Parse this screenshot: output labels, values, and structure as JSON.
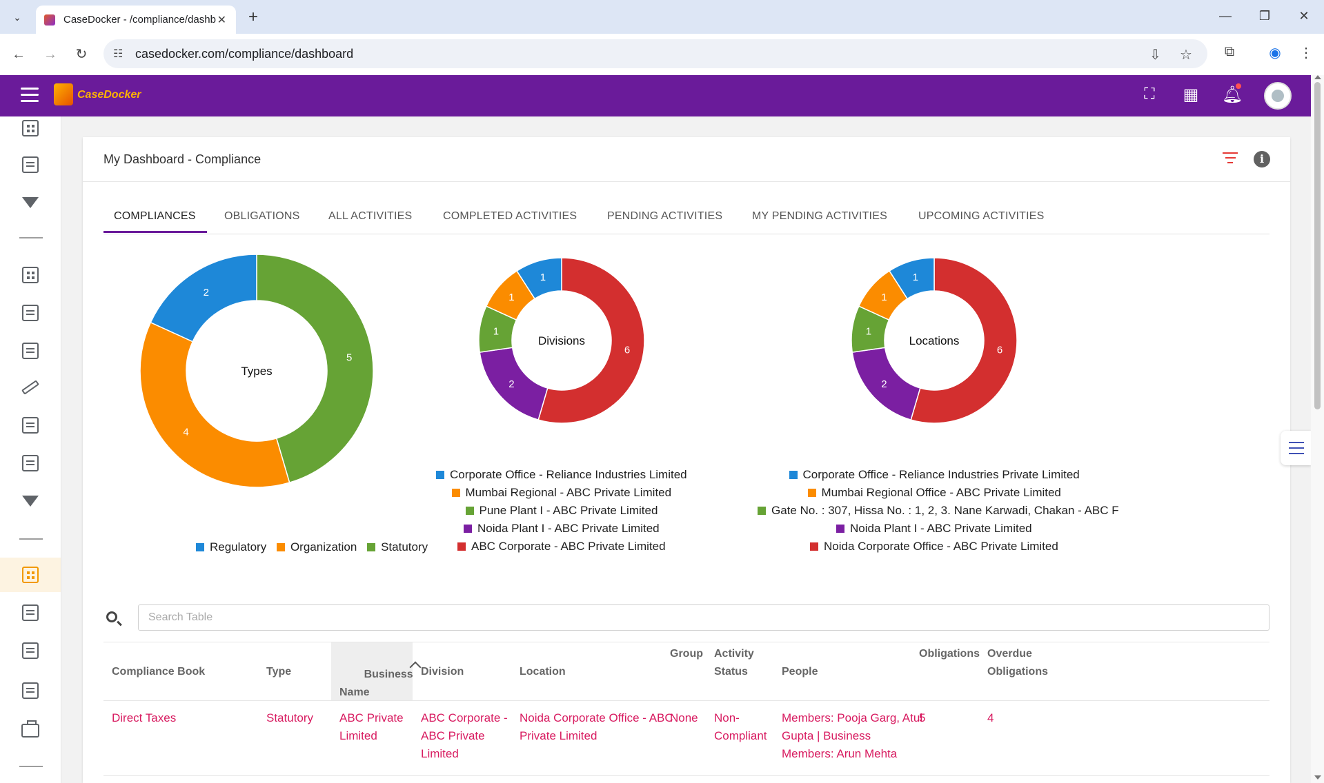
{
  "browser": {
    "tab_title": "CaseDocker - /compliance/dashb",
    "url": "casedocker.com/compliance/dashboard",
    "new_tab": "+",
    "close_tab": "✕",
    "minimize": "—",
    "restore": "❐",
    "close_window": "✕"
  },
  "app": {
    "logo_text": "CaseDocker"
  },
  "page": {
    "title": "My Dashboard - Compliance"
  },
  "tabs": [
    {
      "label": "COMPLIANCES"
    },
    {
      "label": "OBLIGATIONS"
    },
    {
      "label": "ALL ACTIVITIES"
    },
    {
      "label": "COMPLETED ACTIVITIES"
    },
    {
      "label": "PENDING ACTIVITIES"
    },
    {
      "label": "MY PENDING ACTIVITIES"
    },
    {
      "label": "UPCOMING ACTIVITIES"
    }
  ],
  "colors": {
    "blue": "#1e88d8",
    "orange": "#fb8c00",
    "green": "#66a335",
    "purple": "#7b1fa2",
    "red": "#d32f2f"
  },
  "chart_data": [
    {
      "type": "pie",
      "title": "Types",
      "categories": [
        "Regulatory",
        "Organization",
        "Statutory"
      ],
      "values": [
        2,
        4,
        5
      ],
      "colors": [
        "#1e88d8",
        "#fb8c00",
        "#66a335"
      ]
    },
    {
      "type": "pie",
      "title": "Divisions",
      "categories": [
        "Corporate Office - Reliance Industries Limited",
        "Mumbai Regional - ABC Private Limited",
        "Pune Plant I - ABC Private Limited",
        "Noida Plant I - ABC Private Limited",
        "ABC Corporate - ABC Private Limited"
      ],
      "values": [
        1,
        1,
        1,
        2,
        6
      ],
      "colors": [
        "#1e88d8",
        "#fb8c00",
        "#66a335",
        "#7b1fa2",
        "#d32f2f"
      ]
    },
    {
      "type": "pie",
      "title": "Locations",
      "categories": [
        "Corporate Office - Reliance Industries Private Limited",
        "Mumbai Regional Office - ABC Private Limited",
        "Gate No. : 307, Hissa No. : 1, 2, 3. Nane Karwadi, Chakan - ABC F",
        "Noida Plant I - ABC Private Limited",
        "Noida Corporate Office - ABC Private Limited"
      ],
      "values": [
        1,
        1,
        1,
        2,
        6
      ],
      "colors": [
        "#1e88d8",
        "#fb8c00",
        "#66a335",
        "#7b1fa2",
        "#d32f2f"
      ]
    }
  ],
  "search": {
    "placeholder": "Search Table"
  },
  "table": {
    "headers": {
      "compliance_book": "Compliance Book",
      "type": "Type",
      "business_name": "Business\nName",
      "division": "Division",
      "location": "Location",
      "group": "Group",
      "activity_status": "Activity\nStatus",
      "people": "People",
      "obligations": "Obligations",
      "overdue_obligations": "Overdue\nObligations"
    },
    "rows": [
      {
        "compliance_book": "Direct Taxes",
        "type": "Statutory",
        "business_name": "ABC Private\nLimited",
        "division": "ABC Corporate -\nABC Private\nLimited",
        "location": "Noida Corporate Office - ABC\nPrivate Limited",
        "group": "None",
        "activity_status": "Non-\nCompliant",
        "people": "Members: Pooja Garg, Atul\nGupta | Business\nMembers: Arun Mehta",
        "obligations": "5",
        "overdue_obligations": "4"
      }
    ]
  }
}
